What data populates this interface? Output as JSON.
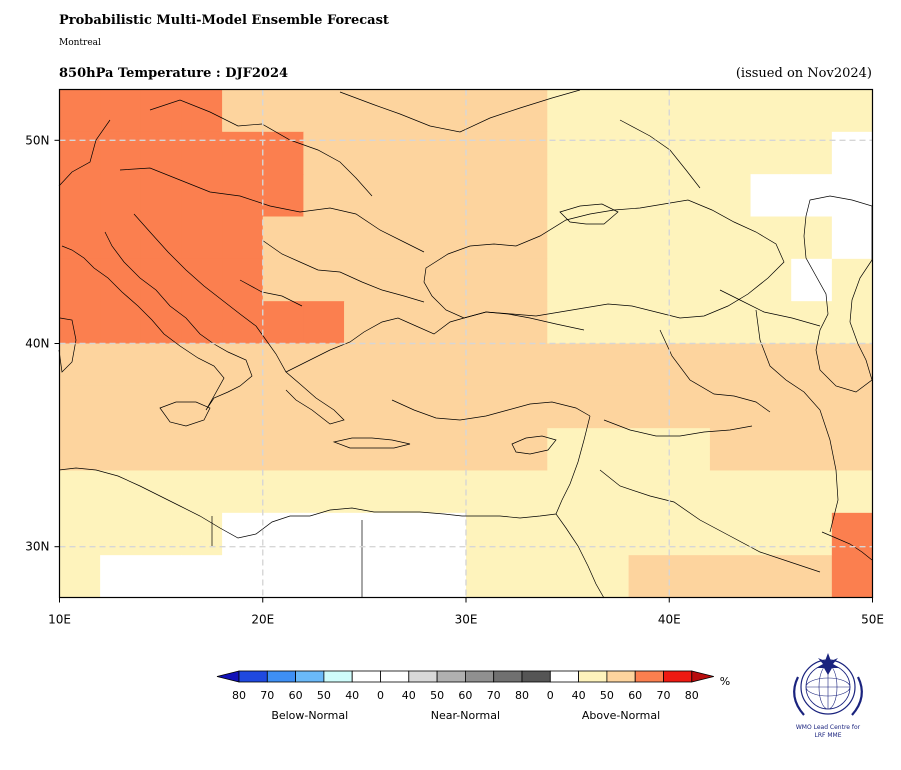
{
  "header": {
    "title": "Probabilistic Multi-Model Ensemble Forecast",
    "subtitle": "Montreal",
    "variable": "850hPa Temperature : DJF2024",
    "issued": "(issued on Nov2024)"
  },
  "map": {
    "lon_range": [
      10,
      50
    ],
    "lat_range": [
      27.5,
      52.5
    ],
    "grid_step_deg": 2.5,
    "lon_ticks": [
      "10E",
      "20E",
      "30E",
      "40E",
      "50E"
    ],
    "lon_tick_values": [
      10,
      20,
      30,
      40,
      50
    ],
    "lat_ticks": [
      "30N",
      "40N",
      "50N"
    ],
    "lat_tick_values": [
      30,
      40,
      50
    ],
    "gridlines": true,
    "category_colors": {
      "A": "#fef3bc",
      "B": "#fdd49e",
      "C": "#fb7f4f",
      "W": "#ffffff"
    },
    "category_legend": {
      "A": "Above-Normal 40-50%",
      "B": "Above-Normal 50-60%",
      "C": "Above-Normal 60-70%",
      "W": "Below 40% / no dominant category"
    },
    "rows_north_to_south": [
      "CCCCCCCCBBBBBBBBAAAAAAAAAAAAAAAA",
      "CCCCCCCCCCCCBBBBBBBBBBBBAAAAAAAAAAAAAAAA",
      "CCCCCCCCCCCCBBBBBBBBBBBBAAAAAAAAAAAAAAAA"
    ],
    "cells": [
      "CCCCCCCCBBBBBBBBAAAAAAAA",
      "CCCCCCCCCCCCBBBBBBBBBBBBAAAAAAAAAAAAAAAA"
    ]
  },
  "grid_cells": [
    "CCCCBBBBBBBBAAAAAAAA",
    "CCCCCCBBBBBBAAAAAAAW",
    "CCCCCCBBBBBBAAAAAWWW",
    "CCCCCBBBBBBBAAAAAAAW",
    "CCCCCBBBBBBBAAAAAAWA",
    "CCCCCCCBBBBBAAAAAAAA",
    "BBBBBBBBBBBBBBBBBBBB",
    "BBBBBBBBBBBBBBBBBBBB",
    "BBBBBBBBBBBBAAAABBBB",
    "AAAAAAAAAAAAAAAAAAAA",
    "AAAAWWWWWWAAAAAAAAAC",
    "AWWWWWWWWWAAAABBBBBC"
  ],
  "colorbar": {
    "unit": "%",
    "below_colors": [
      "#1f49e0",
      "#3e8ff4",
      "#6ab9f8",
      "#cffcfb",
      "#ffffff"
    ],
    "near_colors": [
      "#ffffff",
      "#d8d8d8",
      "#b0b0b0",
      "#909090",
      "#707070",
      "#555555"
    ],
    "above_colors": [
      "#ffffff",
      "#fef3bc",
      "#fdd49e",
      "#fb7f4f",
      "#ee1a12"
    ],
    "below_ticks": [
      "80",
      "70",
      "60",
      "50",
      "40"
    ],
    "near_ticks": [
      "0",
      "40",
      "50",
      "60",
      "70",
      "80"
    ],
    "above_ticks": [
      "0",
      "40",
      "50",
      "60",
      "70",
      "80"
    ],
    "group_labels": [
      "Below-Normal",
      "Near-Normal",
      "Above-Normal"
    ],
    "left_extend_color": "#1212b8",
    "right_extend_color": "#b80d0d"
  },
  "logo": {
    "line1": "WMO Lead Centre for",
    "line2": "LRF MME"
  }
}
